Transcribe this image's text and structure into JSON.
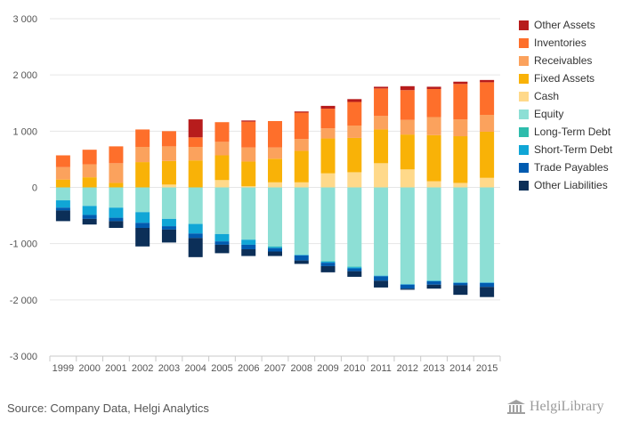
{
  "chart_data": {
    "type": "bar",
    "stacked": true,
    "categories": [
      "1999",
      "2000",
      "2001",
      "2002",
      "2003",
      "2004",
      "2005",
      "2006",
      "2007",
      "2008",
      "2009",
      "2010",
      "2011",
      "2012",
      "2013",
      "2014",
      "2015"
    ],
    "ylim": [
      -3000,
      3000
    ],
    "yticks": [
      -3000,
      -2000,
      -1000,
      0,
      1000,
      2000,
      3000
    ],
    "ytick_labels": [
      "-3 000",
      "-2 000",
      "-1 000",
      "0",
      "1 000",
      "2 000",
      "3 000"
    ],
    "grid": true,
    "legend_position": "right",
    "assets": [
      {
        "name": "Cash",
        "color": "#ffd98a",
        "values": [
          0,
          0,
          0,
          0,
          50,
          0,
          130,
          20,
          90,
          90,
          250,
          270,
          430,
          320,
          110,
          80,
          170
        ]
      },
      {
        "name": "Fixed Assets",
        "color": "#f9b207",
        "values": [
          140,
          180,
          80,
          450,
          420,
          480,
          440,
          440,
          420,
          560,
          620,
          610,
          600,
          620,
          820,
          830,
          820
        ]
      },
      {
        "name": "Receivables",
        "color": "#fba25d",
        "values": [
          220,
          230,
          350,
          270,
          260,
          240,
          240,
          250,
          200,
          210,
          180,
          220,
          240,
          260,
          320,
          300,
          300
        ]
      },
      {
        "name": "Inventories",
        "color": "#fe6f2b",
        "values": [
          210,
          260,
          300,
          310,
          270,
          170,
          350,
          460,
          470,
          470,
          350,
          420,
          490,
          530,
          500,
          630,
          580
        ]
      },
      {
        "name": "Other Assets",
        "color": "#b71c1c",
        "values": [
          0,
          0,
          0,
          0,
          0,
          320,
          0,
          20,
          0,
          20,
          50,
          50,
          30,
          70,
          40,
          40,
          40
        ]
      }
    ],
    "liabilities": [
      {
        "name": "Equity",
        "color": "#8ddfd5",
        "values": [
          -230,
          -330,
          -360,
          -440,
          -560,
          -650,
          -830,
          -930,
          -1050,
          -1200,
          -1310,
          -1410,
          -1570,
          -1720,
          -1660,
          -1690,
          -1690
        ]
      },
      {
        "name": "Long-Term Debt",
        "color": "#2ebcac",
        "values": [
          0,
          0,
          0,
          0,
          0,
          0,
          0,
          0,
          -10,
          0,
          -10,
          -10,
          0,
          0,
          0,
          0,
          0
        ]
      },
      {
        "name": "Short-Term Debt",
        "color": "#10a6d6",
        "values": [
          -130,
          -160,
          -180,
          -190,
          -130,
          -170,
          -130,
          -90,
          -20,
          -10,
          -20,
          -20,
          -10,
          -10,
          -10,
          -10,
          -10
        ]
      },
      {
        "name": "Trade Payables",
        "color": "#005bb0",
        "values": [
          -50,
          -70,
          -60,
          -90,
          -60,
          -80,
          -60,
          -80,
          -60,
          -90,
          -60,
          -50,
          -80,
          -70,
          -60,
          -40,
          -70
        ]
      },
      {
        "name": "Other Liabilities",
        "color": "#0c2f58",
        "values": [
          -190,
          -100,
          -120,
          -330,
          -230,
          -340,
          -150,
          -120,
          -80,
          -60,
          -110,
          -100,
          -120,
          -20,
          -70,
          -170,
          -180
        ]
      }
    ]
  },
  "legend": [
    {
      "label": "Other Assets",
      "color": "#b71c1c"
    },
    {
      "label": "Inventories",
      "color": "#fe6f2b"
    },
    {
      "label": "Receivables",
      "color": "#fba25d"
    },
    {
      "label": "Fixed Assets",
      "color": "#f9b207"
    },
    {
      "label": "Cash",
      "color": "#ffd98a"
    },
    {
      "label": "Equity",
      "color": "#8ddfd5"
    },
    {
      "label": "Long-Term Debt",
      "color": "#2ebcac"
    },
    {
      "label": "Short-Term Debt",
      "color": "#10a6d6"
    },
    {
      "label": "Trade Payables",
      "color": "#005bb0"
    },
    {
      "label": "Other Liabilities",
      "color": "#0c2f58"
    }
  ],
  "source_text": "Source: Company Data, Helgi Analytics",
  "logo_text": "HelgiLibrary"
}
